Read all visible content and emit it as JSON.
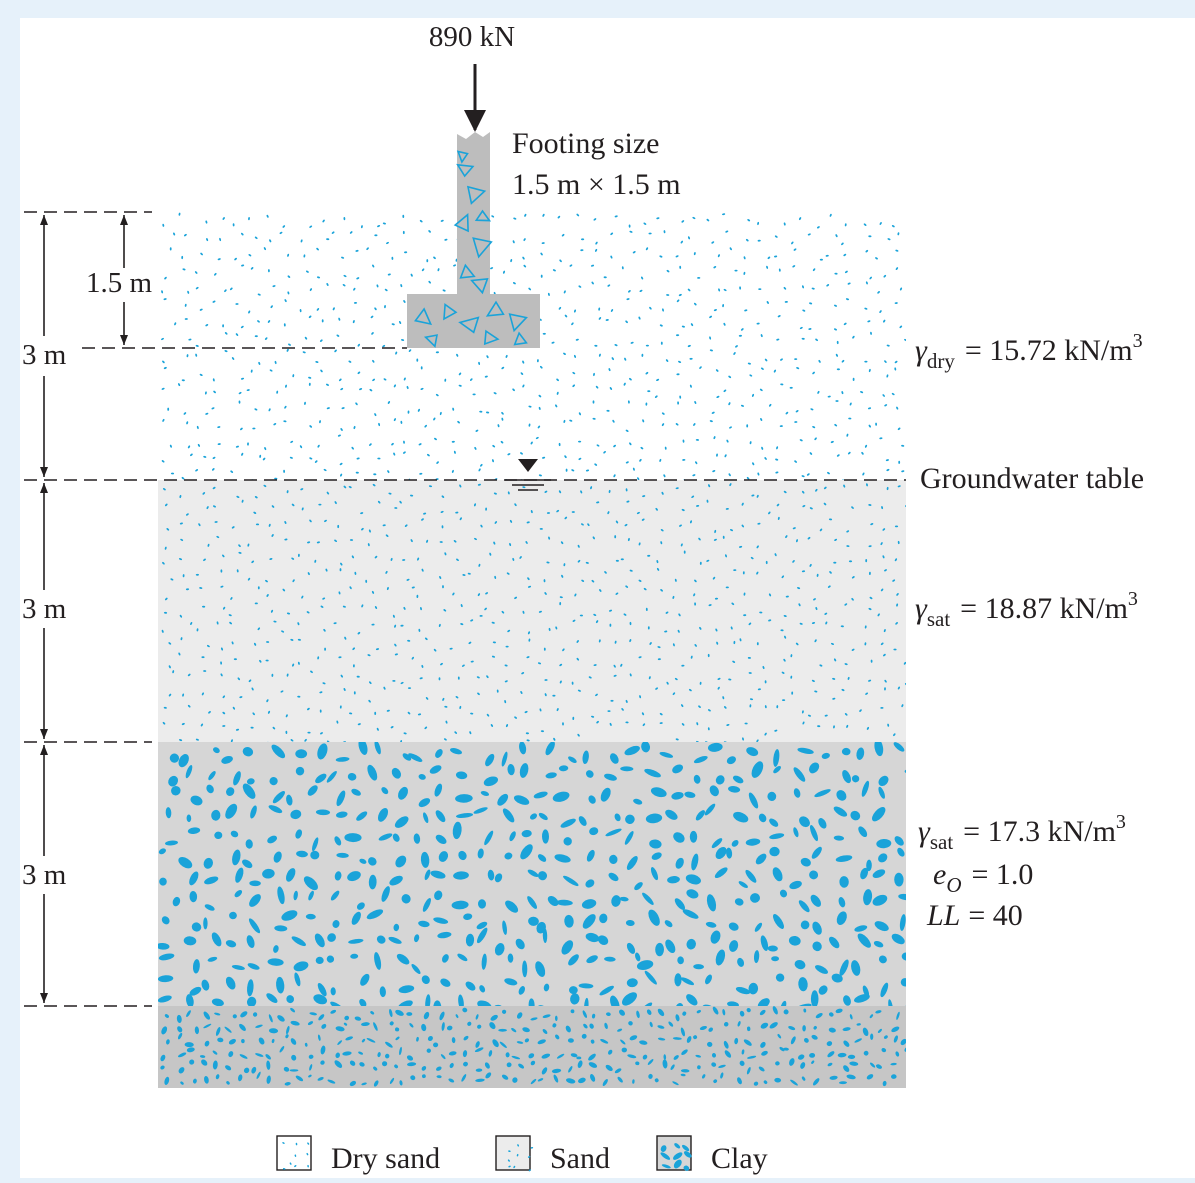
{
  "load": {
    "label": "890 kN"
  },
  "footing": {
    "caption_line1": "Footing size",
    "caption_line2": "1.5 m × 1.5 m"
  },
  "dimensions": {
    "footing_depth": "1.5 m",
    "layer1_thickness": "3 m",
    "layer2_thickness": "3 m",
    "layer3_thickness": "3 m"
  },
  "water_table": {
    "label": "Groundwater table"
  },
  "layers": {
    "dry_sand": {
      "gamma_symbol": "γ",
      "gamma_sub": "dry",
      "gamma_value": "= 15.72 kN/m",
      "gamma_exp": "3"
    },
    "sand": {
      "gamma_symbol": "γ",
      "gamma_sub": "sat",
      "gamma_value": "= 18.87 kN/m",
      "gamma_exp": "3"
    },
    "clay": {
      "gamma_symbol": "γ",
      "gamma_sub": "sat",
      "gamma_value": "= 17.3 kN/m",
      "gamma_exp": "3",
      "e_symbol": "e",
      "e_sub": "O",
      "e_value": "= 1.0",
      "ll_symbol": "LL",
      "ll_value": "= 40"
    }
  },
  "legend": {
    "dry_sand": "Dry sand",
    "sand": "Sand",
    "clay": "Clay"
  },
  "colors": {
    "accent": "#1aa3d9",
    "sand_fill": "#ececec",
    "clay_fill": "#d6d6d6",
    "bottom_fill": "#c6c6c6",
    "concrete": "#bdbdbd",
    "ink": "#231f20"
  }
}
